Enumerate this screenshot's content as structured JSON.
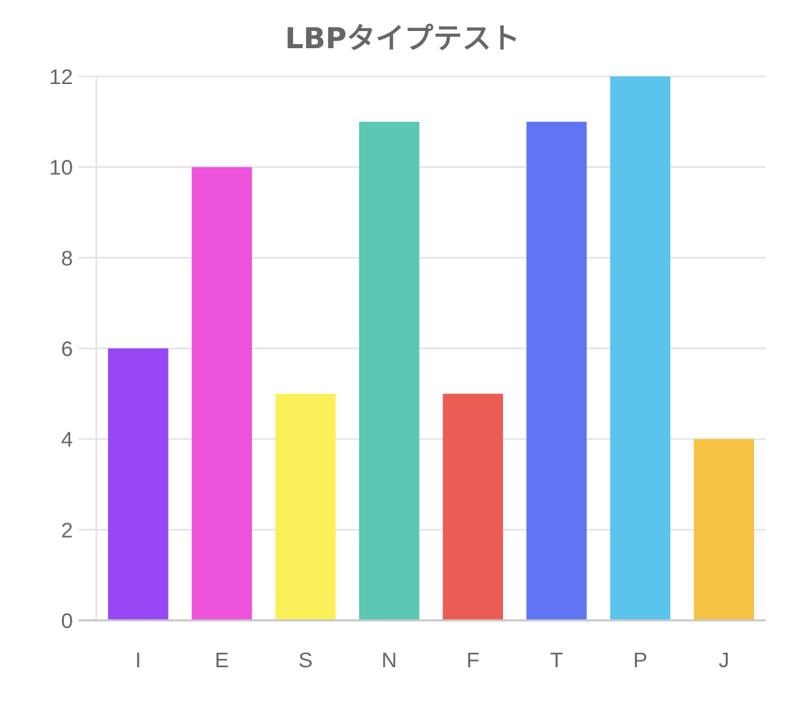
{
  "chart_data": {
    "type": "bar",
    "title": "LBPタイプテスト",
    "categories": [
      "I",
      "E",
      "S",
      "N",
      "F",
      "T",
      "P",
      "J"
    ],
    "values": [
      6,
      10,
      5,
      11,
      5,
      11,
      12,
      4
    ],
    "colors": [
      "#9747f4",
      "#ec52da",
      "#fcf05a",
      "#5cc7b2",
      "#ea5d55",
      "#6175f4",
      "#5bc4ec",
      "#f5c343"
    ],
    "ylim": [
      0,
      12
    ],
    "yticks": [
      "0",
      "2",
      "4",
      "6",
      "8",
      "10",
      "12"
    ],
    "xlabel": "",
    "ylabel": "",
    "grid": true,
    "legend": "none",
    "grid_color": "#e5e5e5",
    "axis_color": "#c8c8c8",
    "text_color": "#666666"
  }
}
